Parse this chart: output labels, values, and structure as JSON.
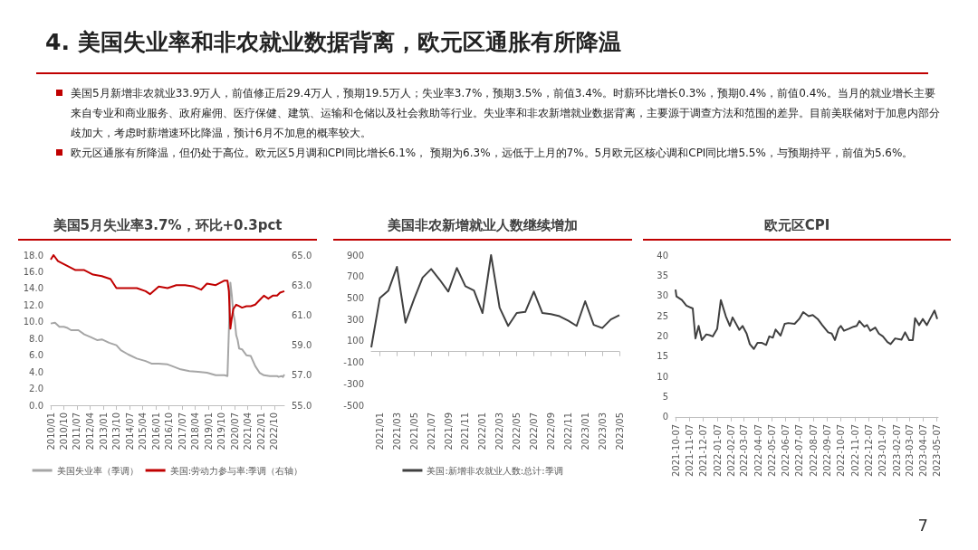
{
  "chart_data": [
    {
      "type": "other",
      "title": "4. 美国失业率和非农就业数据背离，欧元区通胀有所降温",
      "annotations": [
        "美国5月新增非农就业33.9万人，前值修正后29.4万人，预期19.5万人；失业率3.7%，预期3.5%，前值3.4%。时薪环比增长0.3%，预期0.4%，前值0.4%。当月的就业增长主要来自专业和商业服务、政府雇佣、医疗保健、建筑、运输和仓储以及社会救助等行业。失业率和非农新增就业数据背离，主要源于调查方法和范围的差异。目前美联储对于加息内部分歧加大，考虑时薪增速环比降温，预计6月不加息的概率较大。",
        "欧元区通胀有所降温，但仍处于高位。欧元区5月调和CPI同比增长6.1%， 预期为6.3%，远低于上月的7%。5月欧元区核心调和CPI同比增5.5%，与预期持平，前值为5.6%。",
        "7"
      ]
    },
    {
      "type": "line",
      "title": "美国5月失业率3.7%，环比+0.3pct",
      "legend": "bottom",
      "grid": false,
      "xlim": [
        "2010-01",
        "2023-05"
      ],
      "xticks": [
        {
          "value": "2010-01",
          "label": "2010/01"
        },
        {
          "value": "2010-10",
          "label": "2010/10"
        },
        {
          "value": "2011-07",
          "label": "2011/07"
        },
        {
          "value": "2012-04",
          "label": "2012/04"
        },
        {
          "value": "2013-01",
          "label": "2013/01"
        },
        {
          "value": "2013-10",
          "label": "2013/10"
        },
        {
          "value": "2014-07",
          "label": "2014/07"
        },
        {
          "value": "2015-04",
          "label": "2015/04"
        },
        {
          "value": "2016-01",
          "label": "2016/01"
        },
        {
          "value": "2016-10",
          "label": "2016/10"
        },
        {
          "value": "2017-07",
          "label": "2017/07"
        },
        {
          "value": "2018-04",
          "label": "2018/04"
        },
        {
          "value": "2019-01",
          "label": "2019/01"
        },
        {
          "value": "2019-10",
          "label": "2019/10"
        },
        {
          "value": "2020-07",
          "label": "2020/07"
        },
        {
          "value": "2021-04",
          "label": "2021/04"
        },
        {
          "value": "2022-01",
          "label": "2022/01"
        },
        {
          "value": "2022-10",
          "label": "2022/10"
        }
      ],
      "ylim": [
        0,
        18
      ],
      "yticks": [
        {
          "value": 0,
          "label": "0.0"
        },
        {
          "value": 2,
          "label": "2.0"
        },
        {
          "value": 4,
          "label": "4.0"
        },
        {
          "value": 6,
          "label": "6.0"
        },
        {
          "value": 8,
          "label": "8.0"
        },
        {
          "value": 10,
          "label": "10.0"
        },
        {
          "value": 12,
          "label": "12.0"
        },
        {
          "value": 14,
          "label": "14.0"
        },
        {
          "value": 16,
          "label": "16.0"
        },
        {
          "value": 18,
          "label": "18.0"
        }
      ],
      "y2lim": [
        55,
        65
      ],
      "y2ticks": [
        {
          "value": 55,
          "label": "55.0"
        },
        {
          "value": 57,
          "label": "57.0"
        },
        {
          "value": 59,
          "label": "59.0"
        },
        {
          "value": 61,
          "label": "61.0"
        },
        {
          "value": 63,
          "label": "63.0"
        },
        {
          "value": 65,
          "label": "65.0"
        }
      ],
      "series": [
        {
          "name": "美国失业率（季调）",
          "color": "#a6a6a6",
          "x": [
            "2010-01",
            "2010-04",
            "2010-07",
            "2010-10",
            "2010-12",
            "2011-03",
            "2011-08",
            "2011-12",
            "2012-04",
            "2012-09",
            "2012-12",
            "2013-05",
            "2013-10",
            "2014-01",
            "2014-06",
            "2014-12",
            "2015-06",
            "2015-10",
            "2016-03",
            "2016-09",
            "2016-12",
            "2017-06",
            "2017-12",
            "2018-06",
            "2018-12",
            "2019-06",
            "2019-12",
            "2020-02",
            "2020-04",
            "2020-05",
            "2020-06",
            "2020-07",
            "2020-08",
            "2020-09",
            "2020-10",
            "2020-12",
            "2021-03",
            "2021-06",
            "2021-09",
            "2021-12",
            "2022-03",
            "2022-07",
            "2022-12",
            "2023-01",
            "2023-03",
            "2023-04",
            "2023-05"
          ],
          "values": [
            9.8,
            9.9,
            9.4,
            9.4,
            9.3,
            9.0,
            9.0,
            8.5,
            8.2,
            7.8,
            7.9,
            7.5,
            7.2,
            6.6,
            6.1,
            5.6,
            5.3,
            5.0,
            5.0,
            4.9,
            4.7,
            4.3,
            4.1,
            4.0,
            3.9,
            3.6,
            3.6,
            3.5,
            14.7,
            13.2,
            11.0,
            10.2,
            8.4,
            7.8,
            6.8,
            6.7,
            6.0,
            5.9,
            4.7,
            3.9,
            3.6,
            3.5,
            3.5,
            3.4,
            3.5,
            3.4,
            3.7
          ]
        },
        {
          "name": "美国:劳动力参与率:季调（右轴）",
          "color": "#c00000",
          "axis": "y2",
          "x": [
            "2010-01",
            "2010-03",
            "2010-06",
            "2010-12",
            "2011-06",
            "2011-12",
            "2012-06",
            "2012-12",
            "2013-06",
            "2013-10",
            "2014-06",
            "2014-12",
            "2015-06",
            "2015-09",
            "2016-03",
            "2016-09",
            "2017-03",
            "2017-09",
            "2018-03",
            "2018-08",
            "2018-12",
            "2019-06",
            "2019-12",
            "2020-02",
            "2020-03",
            "2020-04",
            "2020-05",
            "2020-06",
            "2020-08",
            "2020-10",
            "2020-12",
            "2021-03",
            "2021-06",
            "2021-09",
            "2021-12",
            "2022-03",
            "2022-06",
            "2022-09",
            "2022-12",
            "2023-02",
            "2023-05"
          ],
          "values": [
            64.7,
            65.0,
            64.6,
            64.3,
            64.0,
            64.0,
            63.7,
            63.6,
            63.4,
            62.8,
            62.8,
            62.8,
            62.6,
            62.4,
            62.9,
            62.8,
            63.0,
            63.0,
            62.9,
            62.7,
            63.1,
            63.0,
            63.3,
            63.3,
            62.6,
            60.1,
            60.8,
            61.4,
            61.7,
            61.6,
            61.5,
            61.6,
            61.6,
            61.7,
            62.0,
            62.3,
            62.1,
            62.3,
            62.3,
            62.5,
            62.6
          ]
        }
      ]
    },
    {
      "type": "line",
      "title": "美国非农新增就业人数继续增加",
      "legend": "bottom",
      "grid": false,
      "categories": [
        null,
        "2021/01",
        null,
        "2021/03",
        null,
        "2021/05",
        null,
        "2021/07",
        null,
        "2021/09",
        null,
        "2021/11",
        null,
        "2022/01",
        null,
        "2022/03",
        null,
        "2022/05",
        null,
        "2022/07",
        null,
        "2022/09",
        null,
        "2022/11",
        null,
        "2023/01",
        null,
        "2023/03",
        null,
        "2023/05"
      ],
      "ylim": [
        -500,
        900
      ],
      "yticks": [
        -500,
        -300,
        -100,
        100,
        300,
        500,
        700,
        900
      ],
      "series": [
        {
          "name": "美国:新增非农就业人数:总计:季调",
          "color": "#404040",
          "values": [
            40,
            500,
            570,
            790,
            270,
            490,
            690,
            770,
            670,
            560,
            780,
            610,
            570,
            360,
            900,
            410,
            240,
            360,
            370,
            560,
            360,
            350,
            330,
            290,
            240,
            470,
            250,
            220,
            300,
            340
          ]
        }
      ]
    },
    {
      "type": "line",
      "title": "欧元区CPI",
      "grid": false,
      "xlim": [
        "2021-10-07",
        "2023-05-10"
      ],
      "xticks": [
        "2021-10-07",
        "2021-11-07",
        "2021-12-07",
        "2022-01-07",
        "2022-02-07",
        "2022-03-07",
        "2022-04-07",
        "2022-05-07",
        "2022-06-07",
        "2022-07-07",
        "2022-08-07",
        "2022-09-07",
        "2022-10-07",
        "2022-11-07",
        "2022-12-07",
        "2023-01-07",
        "2023-02-07",
        "2023-03-07",
        "2023-04-07",
        "2023-05-07"
      ],
      "ylim": [
        0,
        40
      ],
      "yticks": [
        0,
        5,
        10,
        15,
        20,
        25,
        30,
        35,
        40
      ],
      "series": [
        {
          "color": "#404040",
          "x": [
            "2021-10-07",
            "2021-10-09",
            "2021-10-21",
            "2021-10-31",
            "2021-11-14",
            "2021-11-20",
            "2021-11-27",
            "2021-12-04",
            "2021-12-14",
            "2021-12-21",
            "2021-12-28",
            "2022-01-07",
            "2022-01-15",
            "2022-01-26",
            "2022-02-04",
            "2022-02-10",
            "2022-02-25",
            "2022-03-04",
            "2022-03-13",
            "2022-03-20",
            "2022-03-29",
            "2022-04-06",
            "2022-04-16",
            "2022-04-25",
            "2022-05-02",
            "2022-05-10",
            "2022-05-16",
            "2022-05-27",
            "2022-06-05",
            "2022-06-13",
            "2022-06-27",
            "2022-07-07",
            "2022-07-16",
            "2022-07-28",
            "2022-08-06",
            "2022-08-17",
            "2022-08-27",
            "2022-09-09",
            "2022-09-17",
            "2022-09-24",
            "2022-10-02",
            "2022-10-07",
            "2022-10-14",
            "2022-10-25",
            "2022-11-04",
            "2022-11-11",
            "2022-11-17",
            "2022-11-28",
            "2022-12-04",
            "2022-12-11",
            "2022-12-22",
            "2022-12-30",
            "2023-01-08",
            "2023-01-18",
            "2023-01-25",
            "2023-02-04",
            "2023-02-18",
            "2023-02-26",
            "2023-03-07",
            "2023-03-15",
            "2023-03-20",
            "2023-03-29",
            "2023-04-06",
            "2023-04-15",
            "2023-04-22",
            "2023-05-02",
            "2023-05-08"
          ],
          "values": [
            31.5,
            29.8,
            28.9,
            27.5,
            26.8,
            19.4,
            22.5,
            19.0,
            20.4,
            20.2,
            19.9,
            21.8,
            28.9,
            24.9,
            22.5,
            24.6,
            21.5,
            22.5,
            20.6,
            18.0,
            16.8,
            18.3,
            18.3,
            17.8,
            19.9,
            19.6,
            21.6,
            20.1,
            23.0,
            23.2,
            23.0,
            24.2,
            25.9,
            24.9,
            25.2,
            24.2,
            22.7,
            20.9,
            20.6,
            19.0,
            21.8,
            22.5,
            21.3,
            21.8,
            22.3,
            22.5,
            23.7,
            22.3,
            22.7,
            21.3,
            22.1,
            20.6,
            19.9,
            18.5,
            18.0,
            19.4,
            19.1,
            20.9,
            19.0,
            19.0,
            24.4,
            22.7,
            24.2,
            22.7,
            24.2,
            26.3,
            24.2
          ]
        }
      ]
    }
  ]
}
